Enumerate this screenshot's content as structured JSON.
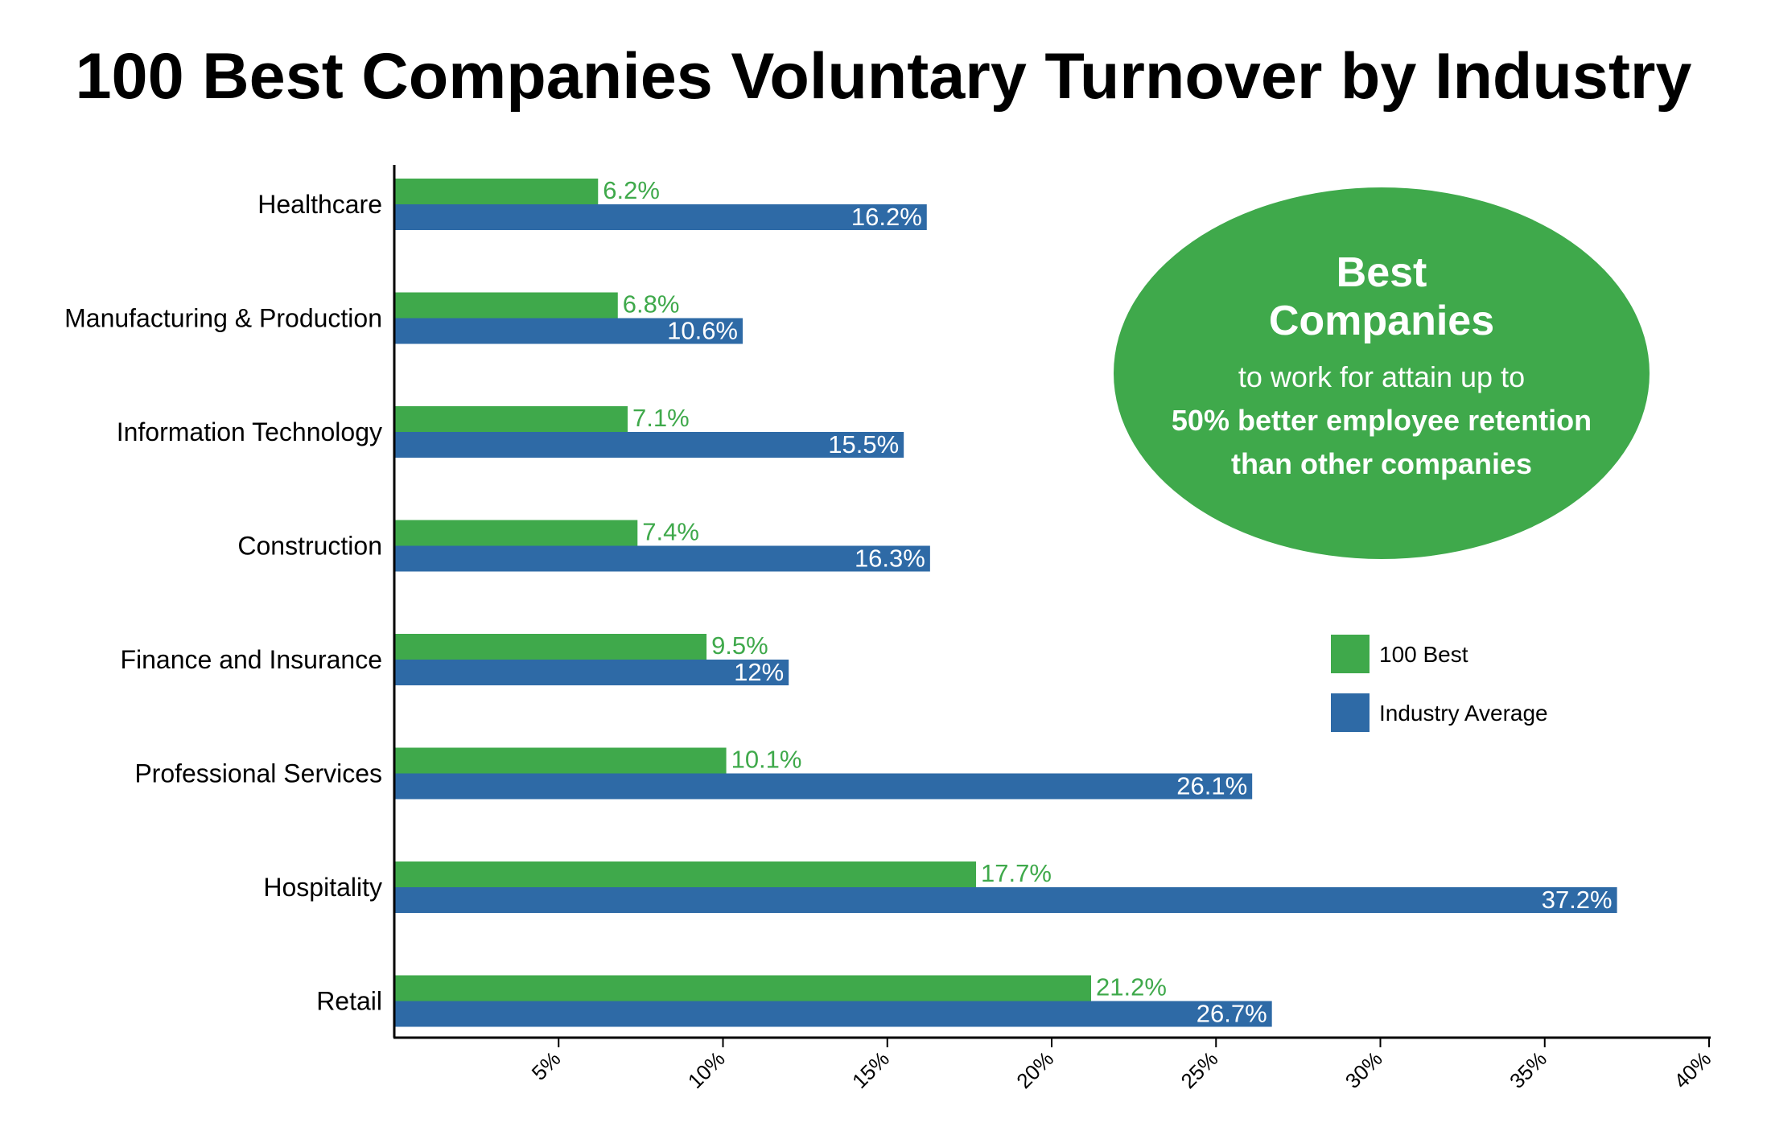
{
  "chart_data": {
    "type": "bar",
    "orientation": "horizontal",
    "title": "100 Best Companies Voluntary Turnover by Industry",
    "categories": [
      "Healthcare",
      "Manufacturing & Production",
      "Information Technology",
      "Construction",
      "Finance and Insurance",
      "Professional Services",
      "Hospitality",
      "Retail"
    ],
    "series": [
      {
        "name": "100 Best",
        "color": "#3fa94b",
        "values": [
          6.2,
          6.8,
          7.1,
          7.4,
          9.5,
          10.1,
          17.7,
          21.2
        ],
        "labels": [
          "6.2%",
          "6.8%",
          "7.1%",
          "7.4%",
          "9.5%",
          "10.1%",
          "17.7%",
          "21.2%"
        ]
      },
      {
        "name": "Industry Average",
        "color": "#2e6aa6",
        "values": [
          16.2,
          10.6,
          15.5,
          16.3,
          12,
          26.1,
          37.2,
          26.7
        ],
        "labels": [
          "16.2%",
          "10.6%",
          "15.5%",
          "16.3%",
          "12%",
          "26.1%",
          "37.2%",
          "26.7%"
        ]
      }
    ],
    "xlim": [
      0,
      40
    ],
    "x_ticks": [
      5,
      10,
      15,
      20,
      25,
      30,
      35,
      40
    ],
    "x_tick_labels": [
      "5%",
      "10%",
      "15%",
      "20%",
      "25%",
      "30%",
      "35%",
      "40%"
    ],
    "xlabel": "",
    "ylabel": "",
    "legend": "right",
    "grid": false,
    "annotation": {
      "color": "#3fa94b",
      "line1": "Best",
      "line2": "Companies",
      "line3": "to work for attain up to",
      "line4": "50% better employee retention",
      "line5": "than other companies"
    }
  }
}
